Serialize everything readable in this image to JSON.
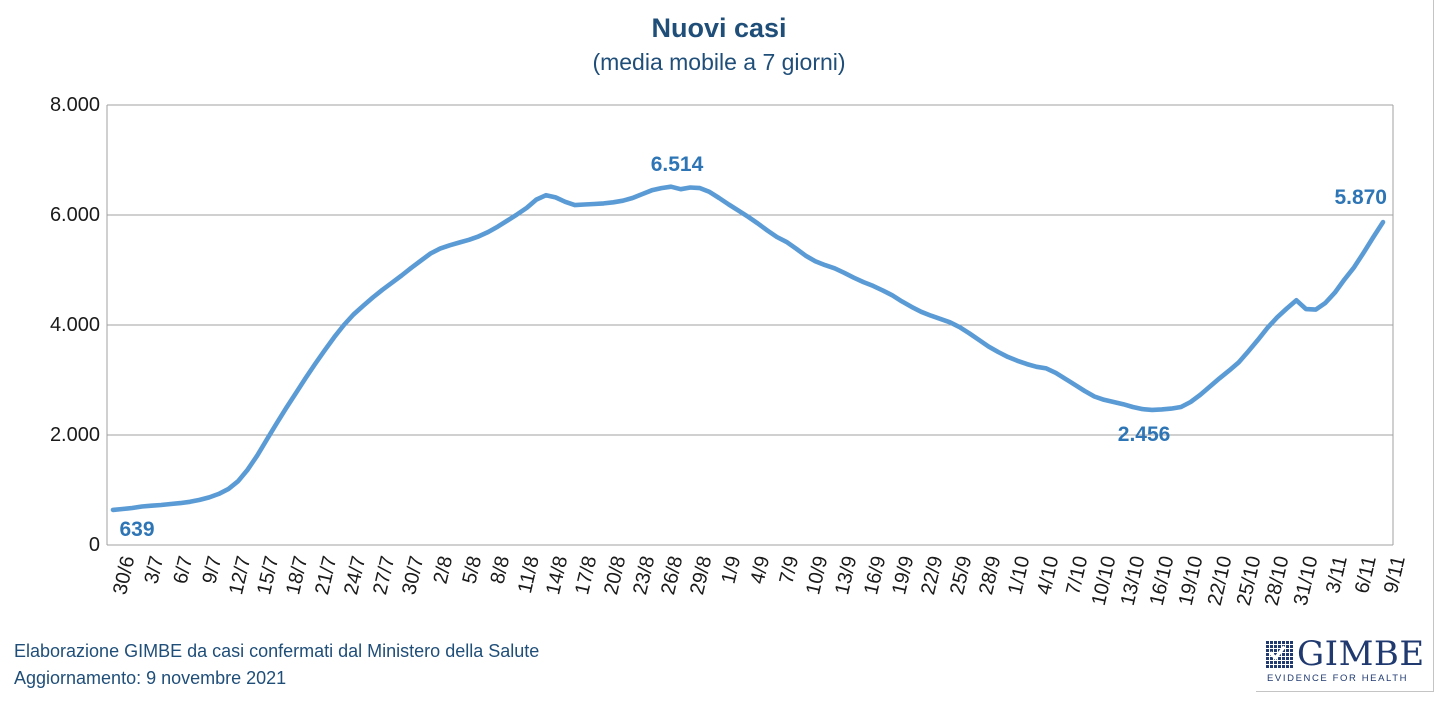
{
  "chart": {
    "title": "Nuovi casi",
    "subtitle": "(media mobile a 7 giorni)"
  },
  "footer": {
    "line1": "Elaborazione GIMBE da casi confermati dal Ministero della Salute",
    "line2": "Aggiornamento: 9 novembre 2021"
  },
  "logo": {
    "name": "GIMBE",
    "tagline": "EVIDENCE FOR HEALTH",
    "icon": "check-grid-icon"
  },
  "colors": {
    "line": "#5B9BD5",
    "annotation": "#2E75B6",
    "title": "#1F4E79",
    "footer": "#1F4E79",
    "logo": "#203A70",
    "grid": "#A0A0A0",
    "axis_text": "#1A1A1A",
    "window_edge": "#C4C4C4"
  },
  "chart_data": {
    "type": "line",
    "title": "Nuovi casi (media mobile a 7 giorni)",
    "grid": "horizontal",
    "legend": "none",
    "ylim": [
      0,
      8000
    ],
    "y_ticks": [
      "0",
      "2.000",
      "4.000",
      "6.000",
      "8.000"
    ],
    "x_tick_interval_days": 3,
    "x_tick_labels": [
      "30/6",
      "3/7",
      "6/7",
      "9/7",
      "12/7",
      "15/7",
      "18/7",
      "21/7",
      "24/7",
      "27/7",
      "30/7",
      "2/8",
      "5/8",
      "8/8",
      "11/8",
      "14/8",
      "17/8",
      "20/8",
      "23/8",
      "26/8",
      "29/8",
      "1/9",
      "4/9",
      "7/9",
      "10/9",
      "13/9",
      "16/9",
      "19/9",
      "22/9",
      "25/9",
      "28/9",
      "1/10",
      "4/10",
      "7/10",
      "10/10",
      "13/10",
      "16/10",
      "19/10",
      "22/10",
      "25/10",
      "28/10",
      "31/10",
      "3/11",
      "6/11",
      "9/11"
    ],
    "series": [
      {
        "name": "Nuovi casi (media mobile a 7 giorni)",
        "daily_values": [
          639,
          655,
          672,
          700,
          715,
          728,
          745,
          762,
          785,
          820,
          865,
          930,
          1020,
          1160,
          1370,
          1630,
          1920,
          2210,
          2490,
          2760,
          3030,
          3290,
          3540,
          3780,
          4000,
          4190,
          4350,
          4500,
          4640,
          4770,
          4900,
          5040,
          5170,
          5300,
          5390,
          5450,
          5500,
          5550,
          5610,
          5690,
          5790,
          5900,
          6010,
          6130,
          6280,
          6360,
          6320,
          6240,
          6180,
          6190,
          6200,
          6210,
          6230,
          6260,
          6310,
          6380,
          6450,
          6490,
          6514,
          6470,
          6500,
          6490,
          6420,
          6310,
          6190,
          6080,
          5970,
          5850,
          5720,
          5600,
          5510,
          5390,
          5260,
          5160,
          5090,
          5030,
          4950,
          4860,
          4780,
          4710,
          4630,
          4540,
          4430,
          4330,
          4240,
          4170,
          4110,
          4050,
          3960,
          3850,
          3730,
          3610,
          3510,
          3420,
          3350,
          3290,
          3240,
          3210,
          3130,
          3020,
          2910,
          2800,
          2700,
          2640,
          2600,
          2560,
          2510,
          2470,
          2456,
          2465,
          2480,
          2510,
          2600,
          2730,
          2880,
          3030,
          3170,
          3320,
          3520,
          3730,
          3950,
          4140,
          4300,
          4450,
          4290,
          4280,
          4400,
          4590,
          4830,
          5050,
          5320,
          5600,
          5870
        ]
      }
    ],
    "annotations": [
      {
        "label": "639",
        "day_index": 0,
        "value": 639,
        "placement": "below-start"
      },
      {
        "label": "6.514",
        "day_index": 58,
        "value": 6514,
        "placement": "above"
      },
      {
        "label": "2.456",
        "day_index": 108,
        "value": 2456,
        "placement": "below"
      },
      {
        "label": "5.870",
        "day_index": 132,
        "value": 5870,
        "placement": "above-end"
      }
    ]
  }
}
